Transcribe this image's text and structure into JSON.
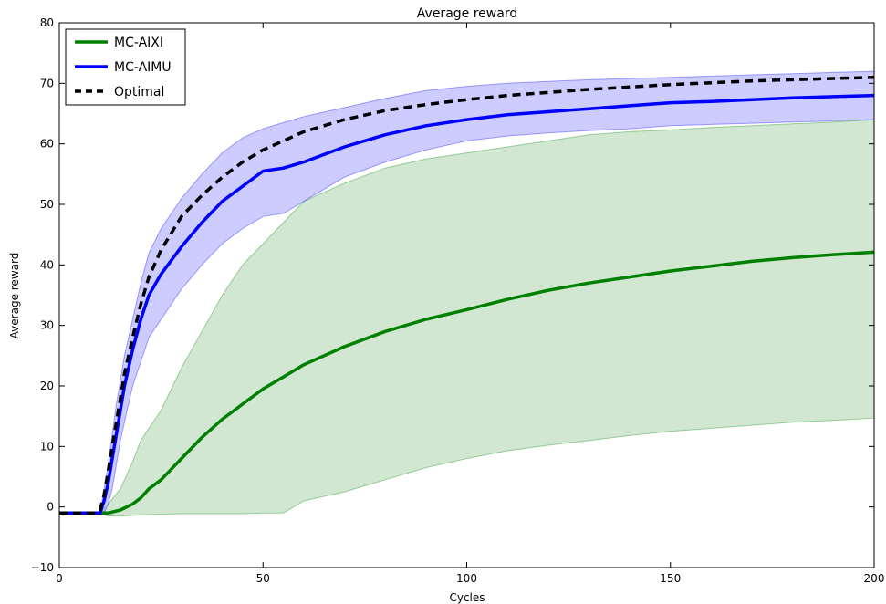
{
  "chart_data": {
    "type": "line",
    "title": "Average reward",
    "xlabel": "Cycles",
    "ylabel": "Average reward",
    "xlim": [
      0,
      200
    ],
    "ylim": [
      -10,
      80
    ],
    "x_ticks": [
      "0",
      "50",
      "100",
      "150",
      "200"
    ],
    "y_ticks": [
      "−10",
      "0",
      "10",
      "20",
      "30",
      "40",
      "50",
      "60",
      "70",
      "80"
    ],
    "grid": false,
    "legend_position": "top-left",
    "series": [
      {
        "name": "MC-AIXI",
        "color": "#008000",
        "style": "solid",
        "band_color": "#a3d0a3",
        "x": [
          0,
          8,
          10,
          12,
          15,
          18,
          20,
          22,
          25,
          30,
          35,
          40,
          45,
          50,
          55,
          60,
          70,
          80,
          90,
          100,
          110,
          120,
          130,
          140,
          150,
          160,
          170,
          180,
          190,
          200
        ],
        "mean": [
          -1,
          -1,
          -1,
          -1,
          -0.5,
          0.5,
          1.5,
          3,
          4.5,
          8,
          11.5,
          14.5,
          17,
          19.5,
          21.5,
          23.5,
          26.5,
          29,
          31,
          32.6,
          34.3,
          35.8,
          37,
          38,
          39,
          39.8,
          40.6,
          41.2,
          41.7,
          42.1
        ],
        "lower": [
          -1,
          -1,
          -1,
          -1.5,
          -1.5,
          -1.4,
          -1.3,
          -1.3,
          -1.2,
          -1.1,
          -1.1,
          -1.1,
          -1.1,
          -1.0,
          -1.0,
          1.0,
          2.5,
          4.5,
          6.5,
          8.0,
          9.3,
          10.2,
          11.0,
          11.8,
          12.5,
          13.0,
          13.5,
          14.0,
          14.3,
          14.7
        ],
        "upper": [
          -1,
          -1,
          -1,
          0.5,
          3,
          7.5,
          11,
          13,
          16,
          23,
          29,
          35,
          40,
          43.5,
          47,
          50.5,
          53.5,
          56,
          57.5,
          58.5,
          59.5,
          60.5,
          61.5,
          62.0,
          62.3,
          62.7,
          63.0,
          63.3,
          63.6,
          64.0
        ]
      },
      {
        "name": "MC-AIMU",
        "color": "#0000ff",
        "style": "solid",
        "band_color": "#9a9aff",
        "x": [
          0,
          9,
          10,
          11,
          12,
          13,
          14,
          15,
          16,
          18,
          20,
          22,
          25,
          30,
          35,
          40,
          45,
          50,
          55,
          60,
          70,
          80,
          90,
          100,
          110,
          120,
          130,
          140,
          150,
          160,
          170,
          180,
          190,
          200
        ],
        "mean": [
          -1,
          -1,
          -1,
          1,
          4,
          8,
          12,
          16,
          20,
          26,
          31,
          35,
          38.5,
          43,
          47,
          50.5,
          53,
          55.5,
          56,
          57,
          59.5,
          61.5,
          63,
          64,
          64.8,
          65.3,
          65.8,
          66.3,
          66.8,
          67,
          67.3,
          67.6,
          67.8,
          68
        ],
        "lower": [
          -1,
          -1,
          -1,
          -1,
          0.5,
          3,
          7,
          11,
          14,
          20,
          24,
          28,
          31,
          36,
          40,
          43.5,
          46,
          48,
          48.5,
          50.5,
          54.5,
          57,
          59,
          60.5,
          61.3,
          61.8,
          62.2,
          62.5,
          63,
          63.2,
          63.4,
          63.6,
          63.8,
          64
        ],
        "upper": [
          -1,
          -1,
          -1,
          3,
          7,
          12,
          17,
          21,
          25,
          31,
          37,
          42,
          46,
          51,
          55,
          58.5,
          61,
          62.5,
          63.5,
          64.5,
          66,
          67.5,
          68.8,
          69.5,
          70,
          70.3,
          70.6,
          70.8,
          71,
          71.2,
          71.4,
          71.6,
          71.8,
          72
        ]
      },
      {
        "name": "Optimal",
        "color": "#000000",
        "style": "dashed",
        "x": [
          0,
          9,
          10,
          11,
          12,
          13,
          14,
          15,
          16,
          18,
          20,
          22,
          25,
          30,
          35,
          40,
          45,
          50,
          55,
          60,
          70,
          80,
          90,
          100,
          110,
          120,
          130,
          140,
          150,
          160,
          170,
          180,
          190,
          200
        ],
        "mean": [
          -1,
          -1,
          -0.5,
          2,
          6,
          10,
          14,
          18,
          22,
          28,
          33.5,
          38,
          42.5,
          48,
          51.5,
          54.5,
          57,
          59,
          60.5,
          62,
          64,
          65.5,
          66.5,
          67.3,
          68,
          68.5,
          69,
          69.4,
          69.8,
          70.1,
          70.4,
          70.6,
          70.8,
          71
        ]
      }
    ]
  }
}
